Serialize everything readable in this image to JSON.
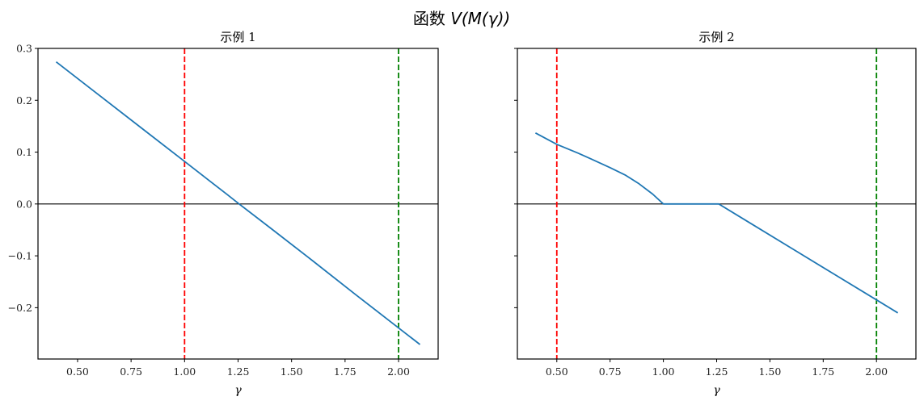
{
  "figure": {
    "suptitle_prefix": "函数 ",
    "suptitle_math": "V(M(γ))"
  },
  "colors": {
    "line": "#1f77b4",
    "red_vline": "#ff0000",
    "green_vline": "#008000",
    "zero_line": "#000000",
    "axes": "#000000"
  },
  "chart_data": [
    {
      "type": "line",
      "title": "示例 1",
      "xlabel": "γ",
      "ylabel": "",
      "xlim": [
        0.315,
        2.185
      ],
      "ylim": [
        -0.299,
        0.3
      ],
      "xticks": [
        0.5,
        0.75,
        1.0,
        1.25,
        1.5,
        1.75,
        2.0
      ],
      "xtick_labels": [
        "0.50",
        "0.75",
        "1.00",
        "1.25",
        "1.50",
        "1.75",
        "2.00"
      ],
      "yticks": [
        -0.2,
        -0.1,
        0.0,
        0.1,
        0.2,
        0.3
      ],
      "ytick_labels": [
        "−0.2",
        "−0.1",
        "0.0",
        "0.1",
        "0.2",
        "0.3"
      ],
      "show_ytick_labels": true,
      "grid": false,
      "hlines": [
        {
          "y": 0.0,
          "color": "#000000",
          "style": "solid"
        }
      ],
      "vlines": [
        {
          "x": 1.0,
          "color": "#ff0000",
          "style": "dashed"
        },
        {
          "x": 2.0,
          "color": "#008000",
          "style": "dashed"
        }
      ],
      "series": [
        {
          "name": "V(M(γ))",
          "x": [
            0.4,
            0.6,
            0.8,
            1.0,
            1.2,
            1.255,
            1.4,
            1.6,
            1.8,
            2.0,
            2.1
          ],
          "y": [
            0.274,
            0.21,
            0.146,
            0.082,
            0.018,
            0.0,
            -0.046,
            -0.11,
            -0.175,
            -0.239,
            -0.271
          ]
        }
      ]
    },
    {
      "type": "line",
      "title": "示例 2",
      "xlabel": "γ",
      "ylabel": "",
      "xlim": [
        0.315,
        2.185
      ],
      "ylim": [
        -0.299,
        0.3
      ],
      "xticks": [
        0.5,
        0.75,
        1.0,
        1.25,
        1.5,
        1.75,
        2.0
      ],
      "xtick_labels": [
        "0.50",
        "0.75",
        "1.00",
        "1.25",
        "1.50",
        "1.75",
        "2.00"
      ],
      "yticks": [
        -0.2,
        -0.1,
        0.0,
        0.1,
        0.2,
        0.3
      ],
      "ytick_labels": [
        "",
        "",
        "",
        "",
        "",
        ""
      ],
      "show_ytick_labels": false,
      "grid": false,
      "hlines": [
        {
          "y": 0.0,
          "color": "#000000",
          "style": "solid"
        }
      ],
      "vlines": [
        {
          "x": 0.5,
          "color": "#ff0000",
          "style": "dashed"
        },
        {
          "x": 2.0,
          "color": "#008000",
          "style": "dashed"
        }
      ],
      "series": [
        {
          "name": "V(M(γ))",
          "x": [
            0.4,
            0.5,
            0.6,
            0.66,
            0.75,
            0.82,
            0.886,
            0.95,
            1.0,
            1.1,
            1.2,
            1.26,
            1.4,
            1.6,
            1.8,
            2.0,
            2.1
          ],
          "y": [
            0.137,
            0.115,
            0.098,
            0.087,
            0.07,
            0.056,
            0.039,
            0.019,
            0.0,
            0.0,
            0.0,
            0.0,
            -0.035,
            -0.085,
            -0.135,
            -0.185,
            -0.21
          ]
        }
      ]
    }
  ]
}
